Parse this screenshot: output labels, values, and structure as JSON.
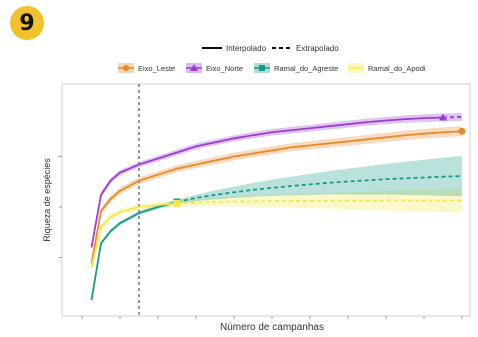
{
  "figure": {
    "number": "9"
  },
  "legend_method": [
    {
      "label": "Interpolado",
      "style": "solid"
    },
    {
      "label": "Extrapolado",
      "style": "dashed"
    }
  ],
  "chart_data": {
    "type": "line",
    "title": "",
    "xlabel": "Número de campanhas",
    "ylabel": "Riqueza de espécies",
    "xlim": [
      0,
      20
    ],
    "ylim": [
      0,
      100
    ],
    "reference_line_x": 3,
    "grid": false,
    "legend_position": "top",
    "x": [
      0.5,
      1,
      1.5,
      2,
      3,
      4,
      5,
      6,
      7,
      8,
      9,
      10,
      11,
      12,
      13,
      14,
      15,
      16,
      17,
      18,
      19,
      20
    ],
    "series": [
      {
        "name": "Eixo_Leste",
        "color": "#e8892a",
        "observed_x": 20,
        "values": [
          22,
          48,
          54,
          58,
          63,
          66,
          69,
          71,
          73,
          75,
          76.5,
          78,
          79.5,
          80.5,
          81.5,
          82.5,
          83.5,
          84.5,
          85.5,
          86.3,
          87,
          87.5
        ],
        "band": 2.5
      },
      {
        "name": "Eixo_Norte",
        "color": "#9b3fd1",
        "observed_x": 19,
        "values": [
          30,
          56,
          63,
          67,
          71,
          74,
          77,
          80,
          82,
          84,
          85.5,
          87,
          88,
          89,
          90,
          91,
          92,
          92.8,
          93.5,
          94,
          94.3,
          94.6
        ],
        "band": 2
      },
      {
        "name": "Ramal_do_Agreste",
        "color": "#1a9a88",
        "observed_x": 5,
        "values": [
          4,
          32,
          38,
          42,
          47,
          50,
          52.5,
          54.5,
          56,
          57.3,
          58.5,
          59.5,
          60.4,
          61.2,
          62,
          62.6,
          63.2,
          63.8,
          64.2,
          64.6,
          65,
          65.3
        ],
        "band_start": 1,
        "band_end": 10
      },
      {
        "name": "Ramal_do_Apodi",
        "color": "#f3e84f",
        "observed_x": 5,
        "values": [
          20,
          40,
          45,
          47.5,
          50,
          51,
          51.8,
          52.2,
          52.5,
          52.7,
          52.8,
          52.9,
          53,
          53,
          53.1,
          53.1,
          53.1,
          53.2,
          53.2,
          53.2,
          53.2,
          53.2
        ],
        "band_start": 1.5,
        "band_end": 6
      }
    ]
  }
}
